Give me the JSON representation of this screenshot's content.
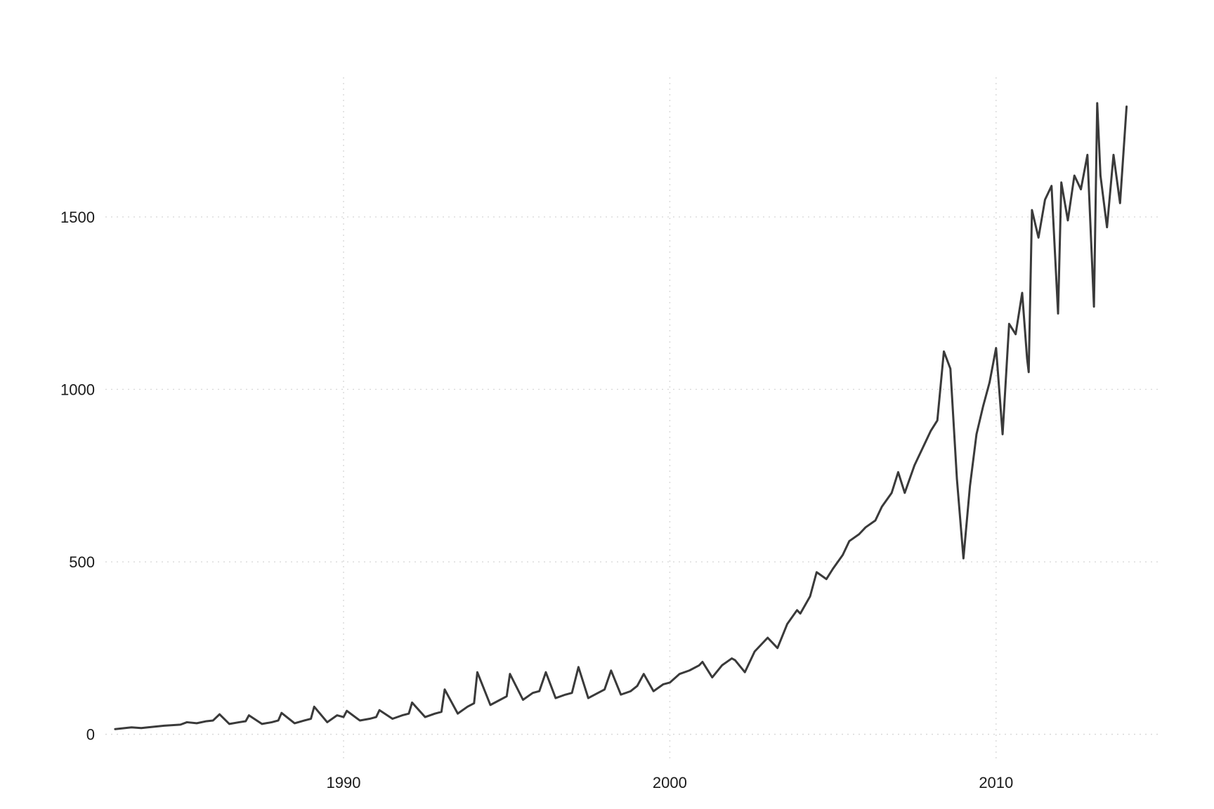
{
  "chart_data": {
    "type": "line",
    "title": "",
    "xlabel": "",
    "ylabel": "",
    "xlim": [
      1982.7,
      2015.0
    ],
    "ylim": [
      -70,
      1905
    ],
    "grid": true,
    "legend": "none",
    "line_color": "#3a3a3a",
    "x_ticks": [
      {
        "value": 1990,
        "label": "1990"
      },
      {
        "value": 2000,
        "label": "2000"
      },
      {
        "value": 2010,
        "label": "2010"
      }
    ],
    "y_ticks": [
      {
        "value": 0,
        "label": "0"
      },
      {
        "value": 500,
        "label": "500"
      },
      {
        "value": 1000,
        "label": "1000"
      },
      {
        "value": 1500,
        "label": "1500"
      }
    ],
    "series": [
      {
        "name": "",
        "x": [
          1983.0,
          1983.5,
          1983.8,
          1984.0,
          1984.5,
          1985.0,
          1985.2,
          1985.5,
          1985.8,
          1986.0,
          1986.2,
          1986.5,
          1986.8,
          1987.0,
          1987.1,
          1987.5,
          1987.8,
          1988.0,
          1988.1,
          1988.5,
          1988.8,
          1989.0,
          1989.1,
          1989.5,
          1989.8,
          1990.0,
          1990.1,
          1990.5,
          1990.8,
          1991.0,
          1991.1,
          1991.5,
          1991.8,
          1992.0,
          1992.1,
          1992.5,
          1992.8,
          1993.0,
          1993.1,
          1993.5,
          1993.8,
          1994.0,
          1994.1,
          1994.5,
          1994.8,
          1995.0,
          1995.1,
          1995.5,
          1995.8,
          1996.0,
          1996.2,
          1996.5,
          1996.8,
          1997.0,
          1997.2,
          1997.5,
          1997.8,
          1998.0,
          1998.2,
          1998.5,
          1998.8,
          1999.0,
          1999.2,
          1999.5,
          1999.8,
          2000.0,
          2000.3,
          2000.6,
          2000.9,
          2001.0,
          2001.3,
          2001.6,
          2001.9,
          2002.0,
          2002.3,
          2002.6,
          2002.9,
          2003.0,
          2003.3,
          2003.6,
          2003.9,
          2004.0,
          2004.3,
          2004.5,
          2004.8,
          2005.0,
          2005.3,
          2005.5,
          2005.8,
          2006.0,
          2006.3,
          2006.5,
          2006.8,
          2007.0,
          2007.2,
          2007.5,
          2007.8,
          2008.0,
          2008.2,
          2008.4,
          2008.6,
          2008.8,
          2009.0,
          2009.2,
          2009.4,
          2009.6,
          2009.8,
          2010.0,
          2010.2,
          2010.4,
          2010.6,
          2010.8,
          2010.95,
          2011.0,
          2011.1,
          2011.3,
          2011.5,
          2011.7,
          2011.9,
          2012.0,
          2012.2,
          2012.4,
          2012.6,
          2012.8,
          2013.0,
          2013.1,
          2013.2,
          2013.4,
          2013.6,
          2013.8,
          2014.0
        ],
        "y": [
          15,
          20,
          18,
          20,
          25,
          28,
          35,
          32,
          38,
          40,
          58,
          30,
          35,
          38,
          55,
          30,
          35,
          40,
          62,
          32,
          40,
          45,
          80,
          35,
          55,
          50,
          68,
          40,
          45,
          50,
          70,
          45,
          55,
          60,
          92,
          50,
          60,
          65,
          130,
          60,
          80,
          90,
          180,
          85,
          100,
          110,
          175,
          100,
          120,
          125,
          180,
          105,
          115,
          120,
          195,
          105,
          120,
          130,
          185,
          115,
          125,
          140,
          175,
          125,
          145,
          150,
          175,
          185,
          200,
          210,
          165,
          200,
          220,
          215,
          180,
          240,
          270,
          280,
          250,
          320,
          360,
          350,
          400,
          470,
          450,
          480,
          520,
          560,
          580,
          600,
          620,
          660,
          700,
          760,
          700,
          780,
          840,
          880,
          910,
          1110,
          1060,
          740,
          510,
          720,
          870,
          950,
          1020,
          1120,
          870,
          1190,
          1160,
          1280,
          1090,
          1050,
          1520,
          1440,
          1550,
          1590,
          1220,
          1600,
          1490,
          1620,
          1580,
          1680,
          1240,
          1830,
          1620,
          1470,
          1680,
          1540,
          1820
        ]
      }
    ]
  }
}
